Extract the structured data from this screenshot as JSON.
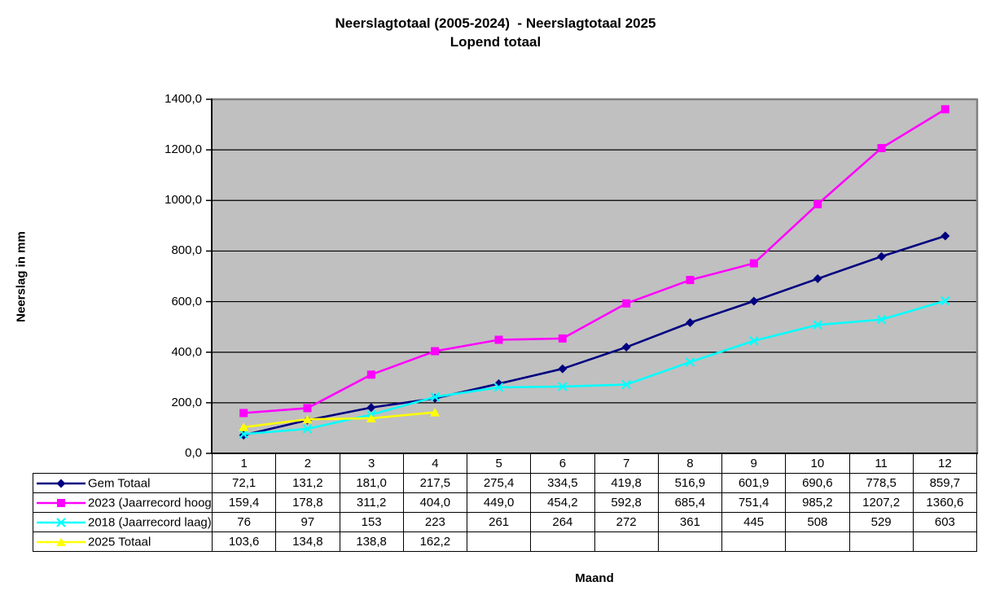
{
  "chart_data": {
    "type": "line",
    "title_line1": "Neerslagtotaal (2005-2024)  - Neerslagtotaal 2025",
    "title_line2": "Lopend totaal",
    "xlabel": "Maand",
    "ylabel": "Neerslag in mm",
    "ylim": [
      0,
      1400
    ],
    "ytick_step": 200,
    "ytick_labels": [
      "0,0",
      "200,0",
      "400,0",
      "600,0",
      "800,0",
      "1000,0",
      "1200,0",
      "1400,0"
    ],
    "categories": [
      "1",
      "2",
      "3",
      "4",
      "5",
      "6",
      "7",
      "8",
      "9",
      "10",
      "11",
      "12"
    ],
    "grid": "horizontal",
    "legend_position": "table-left",
    "colors": {
      "plot_bg": "#C0C0C0",
      "plot_border": "#808080",
      "axis": "#000000",
      "gridline": "#000000"
    },
    "series": [
      {
        "name": "Gem Totaal",
        "color": "#000080",
        "marker": "diamond",
        "values": [
          "72,1",
          "131,2",
          "181,0",
          "217,5",
          "275,4",
          "334,5",
          "419,8",
          "516,9",
          "601,9",
          "690,6",
          "778,5",
          "859,7"
        ]
      },
      {
        "name": "2023 (Jaarrecord hoog)",
        "color": "#FF00FF",
        "marker": "square",
        "values": [
          "159,4",
          "178,8",
          "311,2",
          "404,0",
          "449,0",
          "454,2",
          "592,8",
          "685,4",
          "751,4",
          "985,2",
          "1207,2",
          "1360,6"
        ]
      },
      {
        "name": "2018 (Jaarrecord laag)",
        "color": "#00FFFF",
        "marker": "x",
        "values": [
          "76",
          "97",
          "153",
          "223",
          "261",
          "264",
          "272",
          "361",
          "445",
          "508",
          "529",
          "603"
        ]
      },
      {
        "name": "2025 Totaal",
        "color": "#FFFF00",
        "marker": "triangle",
        "values": [
          "103,6",
          "134,8",
          "138,8",
          "162,2",
          "",
          "",
          "",
          "",
          "",
          "",
          "",
          ""
        ]
      }
    ]
  }
}
